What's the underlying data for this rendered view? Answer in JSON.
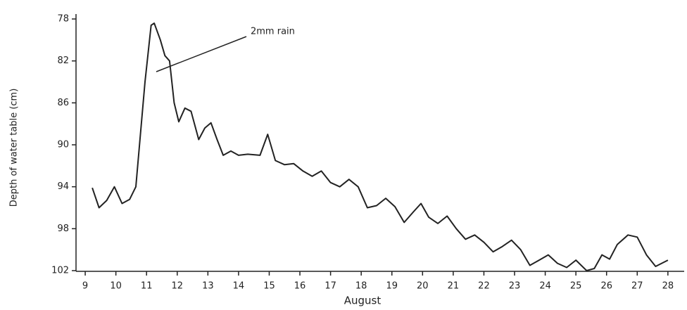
{
  "chart_data": {
    "type": "line",
    "y_label": "Depth of water table (cm)",
    "x_label": "August",
    "annotation": "2mm rain",
    "color": "#222222",
    "x": [
      9.73,
      9.95,
      10.2,
      10.45,
      10.7,
      10.95,
      11.15,
      11.3,
      11.45,
      11.65,
      11.75,
      11.95,
      12.1,
      12.25,
      12.4,
      12.55,
      12.75,
      12.95,
      13.2,
      13.4,
      13.6,
      13.8,
      14.0,
      14.25,
      14.5,
      14.8,
      15.2,
      15.45,
      15.7,
      16.0,
      16.3,
      16.6,
      16.9,
      17.2,
      17.5,
      17.8,
      18.1,
      18.4,
      18.7,
      19.0,
      19.3,
      19.6,
      19.9,
      20.2,
      20.45,
      20.7,
      21.0,
      21.3,
      21.6,
      21.9,
      22.2,
      22.5,
      22.8,
      23.1,
      23.4,
      23.7,
      24.0,
      24.3,
      24.6,
      24.9,
      25.2,
      25.5,
      25.85,
      26.1,
      26.35,
      26.6,
      26.85,
      27.2,
      27.5,
      27.8,
      28.1,
      28.5
    ],
    "values": [
      94.1,
      96.0,
      95.3,
      94.0,
      95.6,
      95.2,
      94.0,
      89.0,
      84.0,
      78.6,
      78.4,
      80.0,
      81.5,
      82.0,
      86.0,
      87.8,
      86.5,
      86.8,
      89.5,
      88.4,
      87.9,
      89.5,
      91.0,
      90.6,
      91.0,
      90.9,
      91.0,
      89.0,
      91.5,
      91.9,
      91.8,
      92.5,
      93.0,
      92.5,
      93.6,
      94.0,
      93.3,
      94.0,
      96.0,
      95.8,
      95.1,
      95.9,
      97.4,
      96.4,
      95.6,
      96.9,
      97.5,
      96.8,
      98.0,
      99.0,
      98.6,
      99.3,
      100.2,
      99.7,
      99.1,
      100.0,
      101.5,
      101.0,
      100.5,
      101.3,
      101.7,
      101.0,
      102.0,
      101.8,
      100.5,
      100.9,
      99.5,
      98.6,
      98.8,
      100.5,
      101.6,
      101.0
    ],
    "xlim": [
      9.2,
      29.1
    ],
    "xticks": [
      {
        "value": 9.5,
        "label": "9"
      },
      {
        "value": 10.5,
        "label": "10"
      },
      {
        "value": 11.5,
        "label": "11"
      },
      {
        "value": 12.5,
        "label": "12"
      },
      {
        "value": 13.5,
        "label": "13"
      },
      {
        "value": 14.5,
        "label": "14"
      },
      {
        "value": 15.5,
        "label": "15"
      },
      {
        "value": 16.5,
        "label": "16"
      },
      {
        "value": 17.5,
        "label": "17"
      },
      {
        "value": 18.5,
        "label": "18"
      },
      {
        "value": 19.5,
        "label": "19"
      },
      {
        "value": 20.5,
        "label": "20"
      },
      {
        "value": 21.5,
        "label": "21"
      },
      {
        "value": 22.5,
        "label": "22"
      },
      {
        "value": 23.5,
        "label": "23"
      },
      {
        "value": 24.5,
        "label": "24"
      },
      {
        "value": 25.5,
        "label": "25"
      },
      {
        "value": 26.5,
        "label": "26"
      },
      {
        "value": 27.5,
        "label": "27"
      },
      {
        "value": 28.5,
        "label": "28"
      }
    ],
    "ylim": [
      102,
      78
    ],
    "yticks": [
      78,
      82,
      86,
      90,
      94,
      98,
      102
    ]
  }
}
